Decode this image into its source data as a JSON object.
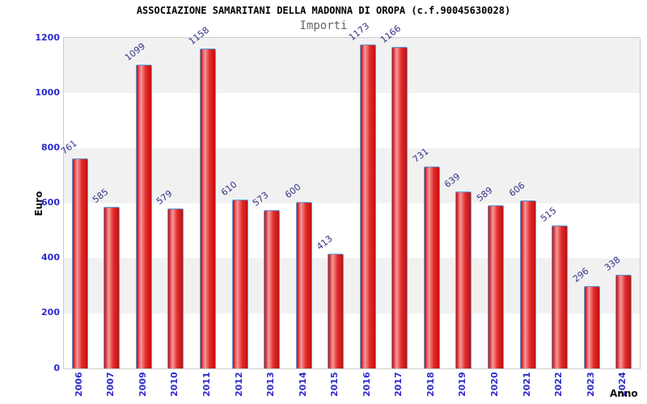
{
  "chart_data": {
    "type": "bar",
    "title": "ASSOCIAZIONE SAMARITANI DELLA MADONNA DI OROPA (c.f.90045630028)",
    "subtitle": "Importi",
    "xlabel": "Anno",
    "ylabel": "Euro",
    "categories": [
      "2006",
      "2007",
      "2009",
      "2010",
      "2011",
      "2012",
      "2013",
      "2014",
      "2015",
      "2016",
      "2017",
      "2018",
      "2019",
      "2020",
      "2021",
      "2022",
      "2023",
      "2024"
    ],
    "values": [
      761,
      585,
      1099,
      579,
      1158,
      610,
      573,
      600,
      413,
      1173,
      1166,
      731,
      639,
      589,
      606,
      515,
      296,
      338
    ],
    "ylim": [
      0,
      1200
    ],
    "yticks": [
      0,
      200,
      400,
      600,
      800,
      1000,
      1200
    ],
    "grid": "alternating horizontal bands every 200 units",
    "legend_position": "none",
    "value_labels": "above bars, rotated",
    "colors": {
      "bar_fill_main": "#e22c2c",
      "bar_fill_light": "#f59a9a",
      "bar_fill_dark": "#c21010",
      "bar_border": "#55a0dd",
      "tick_label": "#2b2bcc",
      "value_label": "#333388",
      "axis_title": "#111111",
      "band_gray": "#f1f1f1",
      "plot_border": "#cccccc",
      "background": "#ffffff"
    }
  }
}
